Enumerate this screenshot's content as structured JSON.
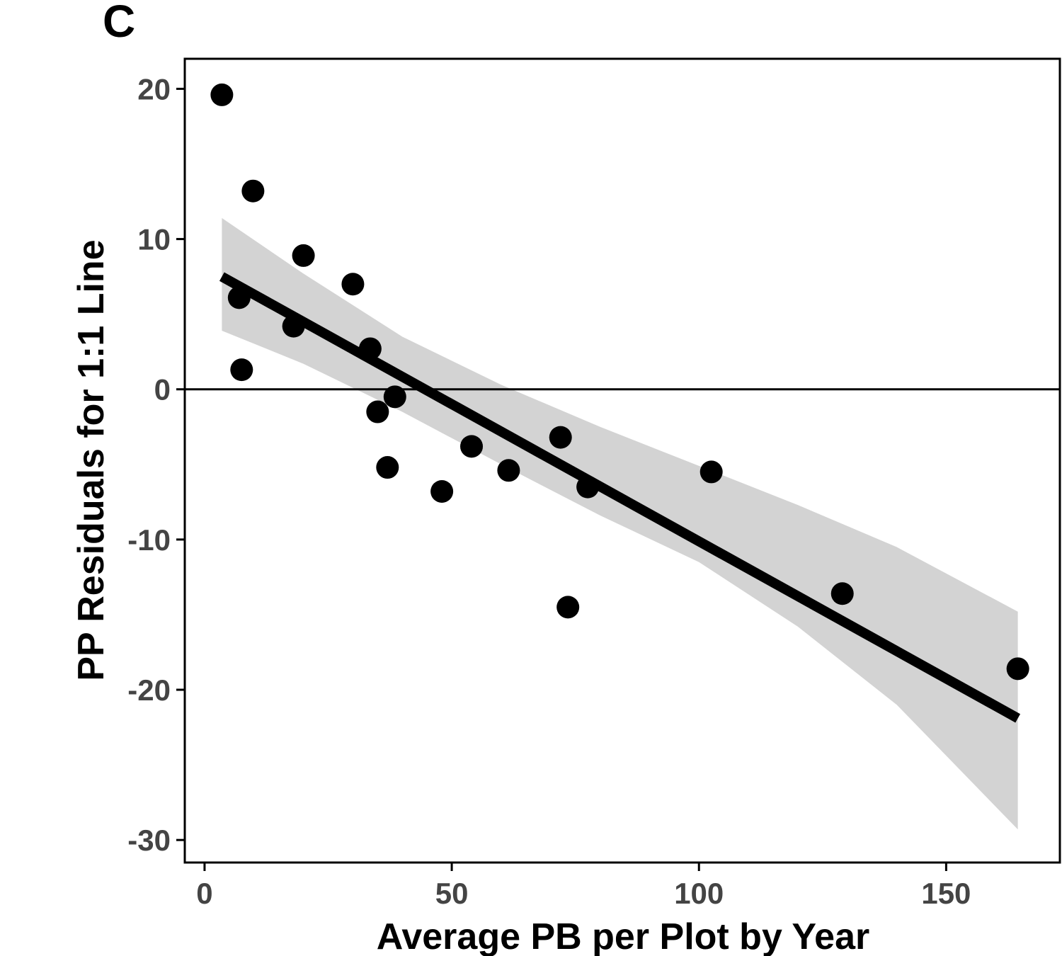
{
  "panel_label": "C",
  "chart_data": {
    "type": "scatter",
    "xlabel": "Average PB per Plot by Year",
    "ylabel": "PP Residuals for 1:1 Line",
    "xlim": [
      -4,
      173
    ],
    "ylim": [
      -31.5,
      22
    ],
    "x_ticks": [
      0,
      50,
      100,
      150
    ],
    "y_ticks": [
      20,
      10,
      0,
      -10,
      -20,
      -30
    ],
    "x_tick_labels": [
      "0",
      "50",
      "100",
      "150"
    ],
    "y_tick_labels": [
      "20",
      "10",
      "0",
      "-10",
      "-20",
      "-30"
    ],
    "grid": false,
    "legend": "none",
    "points": [
      {
        "x": 3.5,
        "y": 19.6
      },
      {
        "x": 9.8,
        "y": 13.2
      },
      {
        "x": 20.0,
        "y": 8.9
      },
      {
        "x": 7.0,
        "y": 6.1
      },
      {
        "x": 30.0,
        "y": 7.0
      },
      {
        "x": 18.0,
        "y": 4.2
      },
      {
        "x": 33.5,
        "y": 2.7
      },
      {
        "x": 7.5,
        "y": 1.3
      },
      {
        "x": 38.5,
        "y": -0.5
      },
      {
        "x": 35.0,
        "y": -1.5
      },
      {
        "x": 37.0,
        "y": -5.2
      },
      {
        "x": 48.0,
        "y": -6.8
      },
      {
        "x": 54.0,
        "y": -3.8
      },
      {
        "x": 61.5,
        "y": -5.4
      },
      {
        "x": 72.0,
        "y": -3.2
      },
      {
        "x": 77.5,
        "y": -6.5
      },
      {
        "x": 73.5,
        "y": -14.5
      },
      {
        "x": 102.5,
        "y": -5.5
      },
      {
        "x": 129.0,
        "y": -13.6
      },
      {
        "x": 164.5,
        "y": -18.6
      }
    ],
    "fit_line": {
      "x": [
        3.5,
        164.5
      ],
      "y": [
        7.5,
        -21.9
      ]
    },
    "confidence_band": {
      "x": [
        3.5,
        20,
        40,
        60,
        80,
        100,
        120,
        140,
        164.5
      ],
      "upper": [
        11.4,
        7.7,
        3.5,
        0.3,
        -2.5,
        -5.1,
        -7.7,
        -10.5,
        -14.8
      ],
      "lower": [
        3.9,
        1.7,
        -1.5,
        -5.0,
        -8.4,
        -11.5,
        -15.8,
        -21.0,
        -29.3
      ]
    },
    "reference_line_y": 0,
    "colors": {
      "points": "#000000",
      "fit_line": "#000000",
      "band": "#d3d3d3",
      "axis": "#000000",
      "tick_labels": "#444444"
    }
  }
}
